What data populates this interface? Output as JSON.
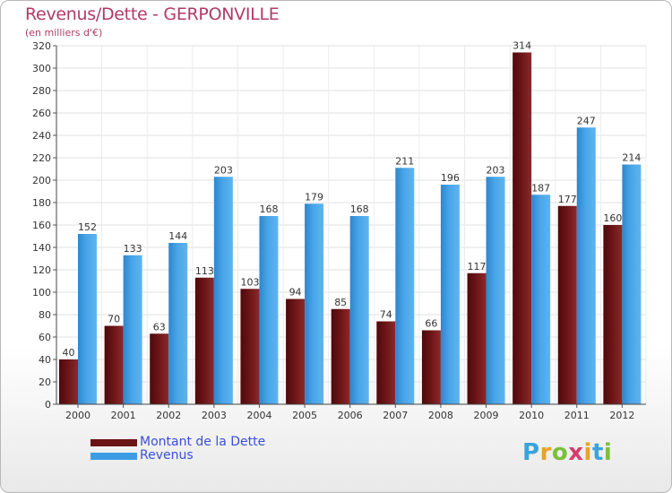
{
  "header": {
    "title": "Revenus/Dette - GERPONVILLE",
    "subtitle": "(en milliers d'€)"
  },
  "legend": {
    "dette_label": "Montant de la Dette",
    "revenus_label": "Revenus"
  },
  "logo": {
    "letters": [
      "P",
      "r",
      "o",
      "x",
      "i",
      "t",
      "i"
    ],
    "colors": [
      "#3aa4da",
      "#e8a227",
      "#7bbf3c",
      "#d23f6e",
      "#e8a227",
      "#3aa4da",
      "#7bbf3c"
    ]
  },
  "colors": {
    "dette": "#6b1416",
    "revenus": "#3d9ce3",
    "title": "#b03a67",
    "legend_text": "#3b4fd6"
  },
  "chart_data": {
    "type": "bar",
    "categories": [
      "2000",
      "2001",
      "2002",
      "2003",
      "2004",
      "2005",
      "2006",
      "2007",
      "2008",
      "2009",
      "2010",
      "2011",
      "2012"
    ],
    "series": [
      {
        "name": "Montant de la Dette",
        "values": [
          40,
          70,
          63,
          113,
          103,
          94,
          85,
          74,
          66,
          117,
          314,
          177,
          160
        ]
      },
      {
        "name": "Revenus",
        "values": [
          152,
          133,
          144,
          203,
          168,
          179,
          168,
          211,
          196,
          203,
          187,
          247,
          214
        ]
      }
    ],
    "yticks": [
      0,
      20,
      40,
      60,
      80,
      100,
      120,
      140,
      160,
      180,
      200,
      220,
      240,
      260,
      280,
      300,
      320
    ],
    "ylim": [
      0,
      320
    ],
    "grid": true
  }
}
